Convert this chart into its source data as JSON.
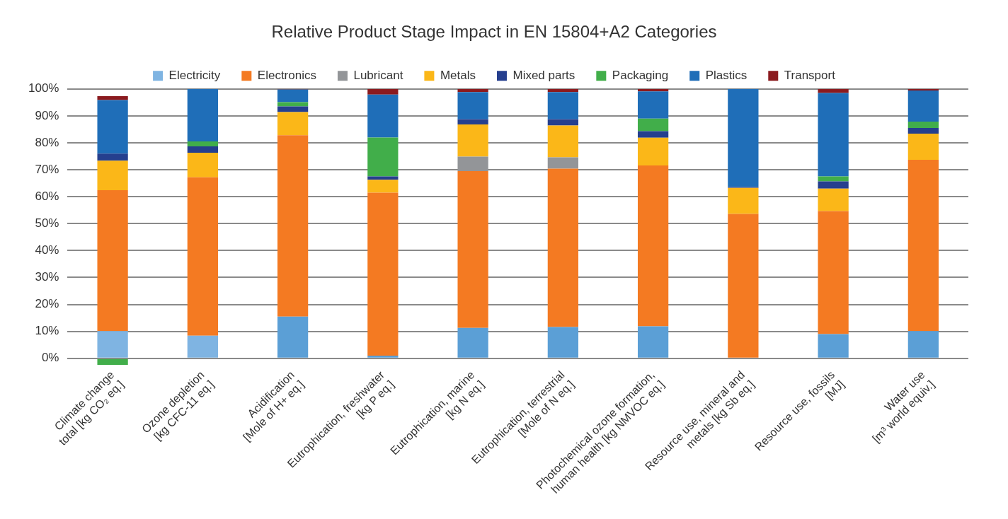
{
  "chart_data": {
    "type": "bar",
    "title": "Relative Product Stage Impact in EN 15804+A2 Categories",
    "stacked": true,
    "legend": "top",
    "grid": "y",
    "categories": [
      "Climate change\ntotal [kg CO₂ eq.]",
      "Ozone depletion\n[kg CFC-11 eq.]",
      "Acidification\n[Mole of H+ eq.]",
      "Eutrophication, freshwater\n[kg P eq.]",
      "Eutrophication, marine\n[kg N eq.]",
      "Eutrophication, terrestrial\n[Mole of N eq.]",
      "Photochemical ozone formation,\nhuman health [kg NMVOC eq.]",
      "Resource use, mineral and\nmetals [kg Sb eq.]",
      "Resource use, fossils\n[MJ]",
      "Water use\n[m³ world equiv.]"
    ],
    "ylim": [
      -3,
      100
    ],
    "yticks": [
      {
        "value": 0,
        "label": "0%"
      },
      {
        "value": 10,
        "label": "10%"
      },
      {
        "value": 20,
        "label": "20%"
      },
      {
        "value": 30,
        "label": "30%"
      },
      {
        "value": 40,
        "label": "40%"
      },
      {
        "value": 50,
        "label": "50%"
      },
      {
        "value": 60,
        "label": "60%"
      },
      {
        "value": 70,
        "label": "70%"
      },
      {
        "value": 80,
        "label": "80%"
      },
      {
        "value": 90,
        "label": "90%"
      },
      {
        "value": 100,
        "label": "100%"
      }
    ],
    "series": [
      {
        "name": "Electricity",
        "color": "#7fb4e2",
        "colors": [
          "#7fb4e2",
          "#7fb4e2",
          "#5b9fd6",
          "#5b9fd6",
          "#5b9fd6",
          "#5b9fd6",
          "#5b9fd6",
          "#5b9fd6",
          "#5b9fd6",
          "#5b9fd6"
        ],
        "values": [
          10.1,
          8.4,
          15.5,
          1.0,
          11.3,
          11.6,
          11.9,
          0,
          9.0,
          10.1
        ]
      },
      {
        "name": "Electronics",
        "color": "#f47a22",
        "values": [
          52.3,
          58.8,
          67.3,
          60.5,
          58.2,
          58.8,
          59.7,
          53.6,
          45.7,
          63.6
        ]
      },
      {
        "name": "Lubricant",
        "color": "#939598",
        "values": [
          0,
          0,
          0,
          0,
          5.4,
          4.2,
          0,
          0,
          0,
          0
        ]
      },
      {
        "name": "Metals",
        "color": "#fbb718",
        "values": [
          11,
          9.1,
          8.6,
          4.8,
          11.9,
          11.8,
          10.3,
          9.7,
          8.3,
          9.7
        ]
      },
      {
        "name": "Mixed parts",
        "color": "#253f8e",
        "values": [
          2.6,
          2.4,
          2.1,
          1.2,
          2.0,
          2.4,
          2.4,
          0.3,
          2.7,
          2.1
        ]
      },
      {
        "name": "Packaging",
        "color": "#41ae4a",
        "values": [
          -2.4,
          1.8,
          1.6,
          14.5,
          0,
          0,
          4.7,
          0,
          1.8,
          2.4
        ]
      },
      {
        "name": "Plastics",
        "color": "#1f6eb8",
        "values": [
          19.9,
          19.5,
          4.7,
          15.9,
          10.0,
          10.0,
          10.1,
          36.4,
          31.0,
          11.5
        ]
      },
      {
        "name": "Transport",
        "color": "#8b1a1e",
        "values": [
          1.4,
          0,
          0.2,
          2.1,
          1.2,
          1.2,
          0.9,
          0,
          1.5,
          0.6
        ]
      }
    ]
  }
}
